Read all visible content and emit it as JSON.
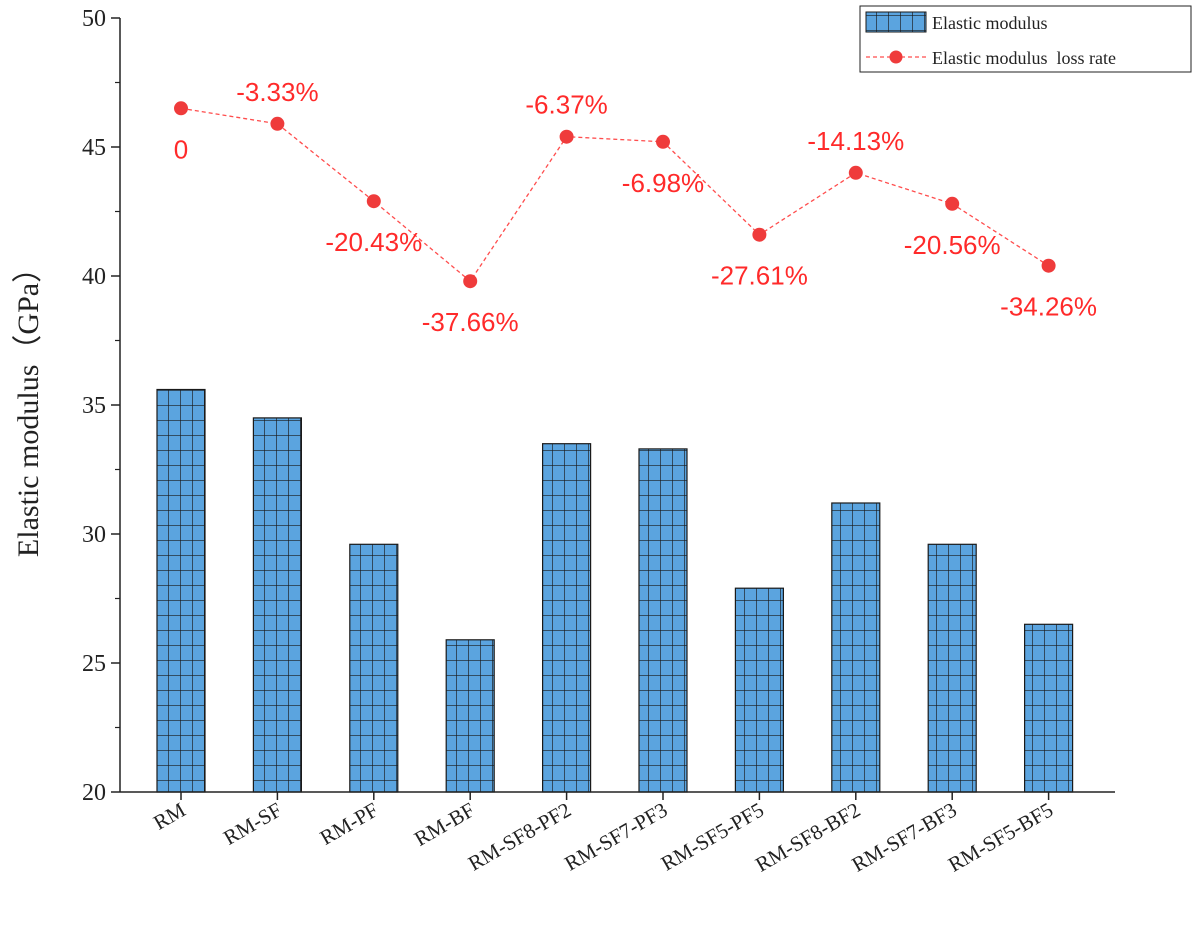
{
  "colors": {
    "bar_fill": "#5ba4df",
    "bar_grid": "#1a1a1a",
    "line": "#ff4d4d",
    "point": "#ef3b3b",
    "label": "#ff2a2a",
    "axis": "#222222"
  },
  "chart_data": {
    "type": "bar",
    "title": "",
    "xlabel": "",
    "ylabel": "Elastic modulus（GPa）",
    "ylim": [
      20,
      50
    ],
    "yticks": [
      "20",
      "25",
      "30",
      "35",
      "40",
      "45",
      "50"
    ],
    "grid": false,
    "legend_position": "top-right",
    "categories": [
      "RM",
      "RM-SF",
      "RM-PF",
      "RM-BF",
      "RM-SF8-PF2",
      "RM-SF7-PF3",
      "RM-SF5-PF5",
      "RM-SF8-BF2",
      "RM-SF7-BF3",
      "RM-SF5-BF5"
    ],
    "series": [
      {
        "name": "Elastic modulus",
        "kind": "bar",
        "values": [
          35.6,
          34.5,
          29.6,
          25.9,
          33.5,
          33.3,
          27.9,
          31.2,
          29.6,
          26.5
        ]
      },
      {
        "name": "Elastic modulus  loss rate",
        "kind": "line",
        "values": [
          46.5,
          45.9,
          42.9,
          39.8,
          45.4,
          45.2,
          41.6,
          44.0,
          42.8,
          40.4
        ],
        "labels": [
          "0",
          "-3.33%",
          "-20.43%",
          "-37.66%",
          "-6.37%",
          "-6.98%",
          "-27.61%",
          "-14.13%",
          "-20.56%",
          "-34.26%"
        ],
        "label_placement": [
          "below",
          "above",
          "below",
          "below",
          "above",
          "below",
          "below",
          "above",
          "below",
          "below"
        ]
      }
    ]
  }
}
